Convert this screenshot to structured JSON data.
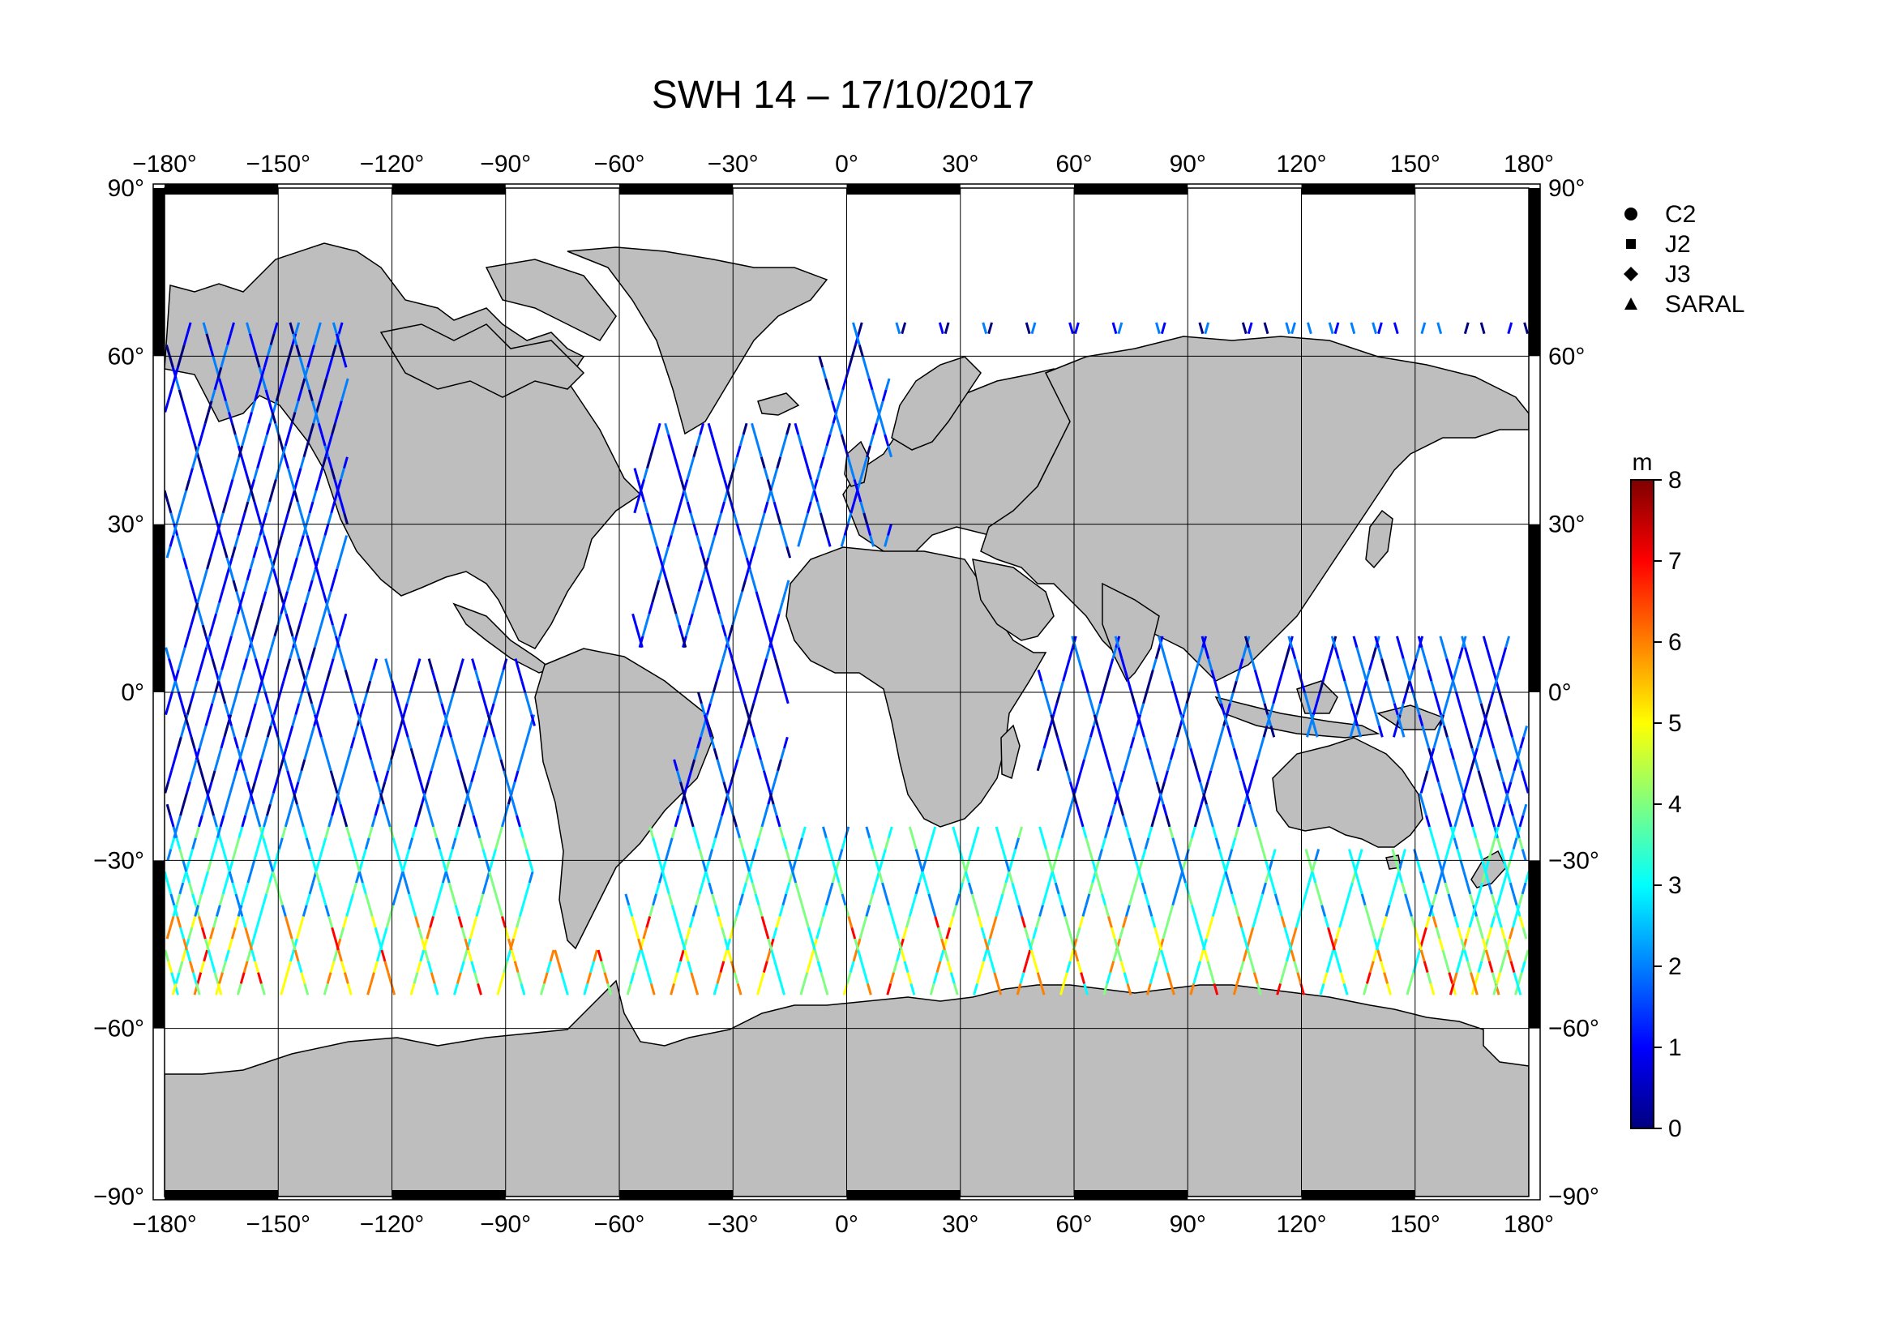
{
  "title": "SWH 14 – 17/10/2017",
  "map": {
    "lon_ticks": [
      -180,
      -150,
      -120,
      -90,
      -60,
      -30,
      0,
      30,
      60,
      90,
      120,
      150,
      180
    ],
    "lat_ticks": [
      90,
      60,
      30,
      0,
      -30,
      -60,
      -90
    ],
    "lon_labels": [
      "−180°",
      "−150°",
      "−120°",
      "−90°",
      "−60°",
      "−30°",
      "0°",
      "30°",
      "60°",
      "90°",
      "120°",
      "150°",
      "180°"
    ],
    "lat_labels": [
      "90°",
      "60°",
      "30°",
      "0°",
      "−30°",
      "−60°",
      "−90°"
    ],
    "land_color": "#bebebe",
    "ocean_color": "#ffffff",
    "grid_color": "#000000"
  },
  "legend": {
    "items": [
      {
        "label": "C2",
        "symbol": "circle"
      },
      {
        "label": "J2",
        "symbol": "square"
      },
      {
        "label": "J3",
        "symbol": "diamond"
      },
      {
        "label": "SARAL",
        "symbol": "triangle"
      }
    ]
  },
  "colorbar": {
    "unit": "m",
    "min": 0,
    "max": 8,
    "ticks": [
      "0",
      "1",
      "2",
      "3",
      "4",
      "5",
      "6",
      "7",
      "8"
    ],
    "colors": [
      "#00007f",
      "#0000ff",
      "#007fff",
      "#00ffff",
      "#7fff7f",
      "#ffff00",
      "#ff7f00",
      "#ff0000",
      "#7f0000"
    ]
  }
}
